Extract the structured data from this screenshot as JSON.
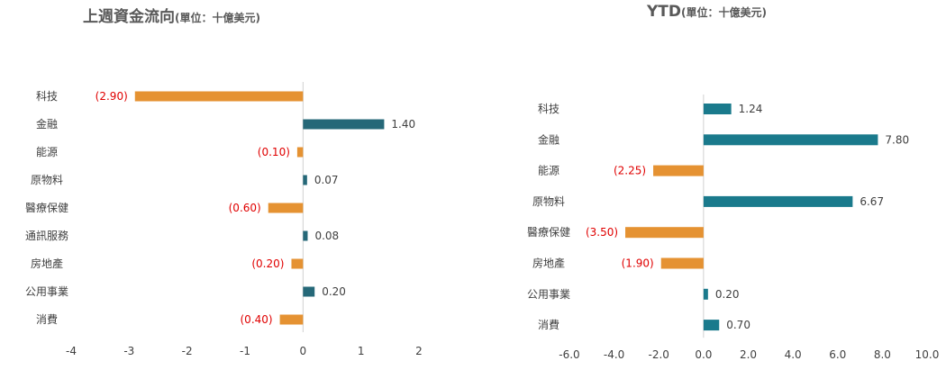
{
  "chart_data": [
    {
      "type": "bar",
      "orientation": "horizontal",
      "title": "上週資金流向",
      "subtitle": "(單位：十億美元)",
      "categories": [
        "科技",
        "金融",
        "能源",
        "原物料",
        "醫療保健",
        "通訊服務",
        "房地產",
        "公用事業",
        "消費"
      ],
      "values": [
        -2.9,
        1.4,
        -0.1,
        0.07,
        -0.6,
        0.08,
        -0.2,
        0.2,
        -0.4
      ],
      "data_labels": [
        "(2.90)",
        "1.40",
        "(0.10)",
        "0.07",
        "(0.60)",
        "0.08",
        "(0.20)",
        "0.20",
        "(0.40)"
      ],
      "xlim": [
        -4,
        2
      ],
      "xticks": [
        -4,
        -3,
        -2,
        -1,
        0,
        1,
        2
      ],
      "xtick_labels": [
        "-4",
        "-3",
        "-2",
        "-1",
        "0",
        "1",
        "2"
      ],
      "grid": false,
      "legend": "none",
      "colors": {
        "positive": "#256878",
        "negative": "#E59232",
        "negative_label": "#E00000",
        "positive_label": "#404040"
      }
    },
    {
      "type": "bar",
      "orientation": "horizontal",
      "title": "YTD",
      "subtitle": "(單位：十億美元)",
      "categories": [
        "科技",
        "金融",
        "能源",
        "原物料",
        "醫療保健",
        "房地產",
        "公用事業",
        "消費"
      ],
      "values": [
        1.24,
        7.8,
        -2.25,
        6.67,
        -3.5,
        -1.9,
        0.2,
        0.7
      ],
      "data_labels": [
        "1.24",
        "7.80",
        "(2.25)",
        "6.67",
        "(3.50)",
        "(1.90)",
        "0.20",
        "0.70"
      ],
      "xlim": [
        -6,
        10
      ],
      "xticks": [
        -6,
        -4,
        -2,
        0,
        2,
        4,
        6,
        8,
        10
      ],
      "xtick_labels": [
        "-6.0",
        "-4.0",
        "-2.0",
        "0.0",
        "2.0",
        "4.0",
        "6.0",
        "8.0",
        "10.0"
      ],
      "grid": false,
      "legend": "none",
      "colors": {
        "positive": "#1A7A8C",
        "negative": "#E59232",
        "negative_label": "#E00000",
        "positive_label": "#404040"
      }
    }
  ]
}
